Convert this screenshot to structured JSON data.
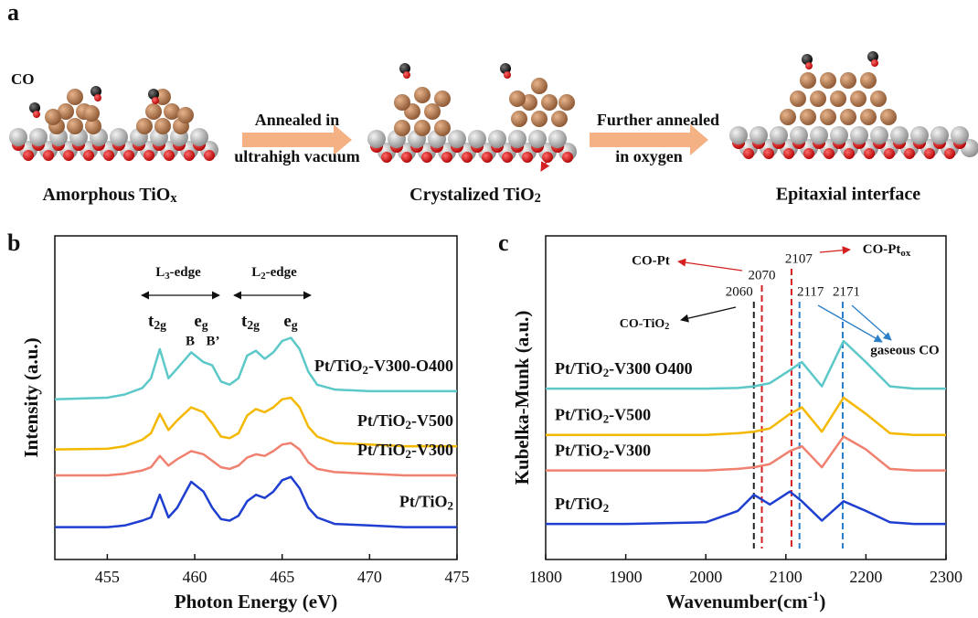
{
  "panel_a": {
    "label": "a",
    "co_label": "CO",
    "step1_top": "Annealed in",
    "step1_bottom": "ultrahigh vacuum",
    "step2_top": "Further annealed",
    "step2_bottom": "in oxygen",
    "stage1": [
      "Amorphous TiO",
      {
        "sub": "x"
      }
    ],
    "stage2": [
      "Crystalized TiO",
      {
        "sub": "2"
      }
    ],
    "stage3": "Epitaxial interface"
  },
  "chart_data": [
    {
      "type": "line",
      "panel": "b",
      "x_label": "Photon Energy (eV)",
      "y_label": "Intensity (a.u.)",
      "xlim": [
        452,
        475
      ],
      "xticks": [
        455,
        460,
        465,
        470,
        475
      ],
      "ylim": [
        0,
        10
      ],
      "x": [
        452,
        455,
        456,
        457,
        457.5,
        458,
        458.5,
        459,
        459.8,
        460.5,
        461,
        461.5,
        462,
        462.5,
        463,
        463.5,
        464,
        464.5,
        465,
        465.5,
        466,
        466.5,
        467,
        468,
        470,
        472,
        475
      ],
      "series": [
        {
          "name": [
            "Pt/TiO",
            {
              "sub": "2"
            },
            "-V300-O400"
          ],
          "color": "#5cc8c8",
          "values": [
            4.95,
            5.0,
            5.1,
            5.3,
            5.6,
            6.5,
            5.6,
            5.9,
            6.4,
            6.1,
            6.0,
            5.5,
            5.4,
            5.6,
            6.3,
            6.45,
            6.2,
            6.4,
            6.75,
            6.85,
            6.5,
            5.8,
            5.4,
            5.25,
            5.2,
            5.2,
            5.2
          ]
        },
        {
          "name": [
            "Pt/TiO",
            {
              "sub": "2"
            },
            "-V500"
          ],
          "color": "#f5b800",
          "values": [
            3.4,
            3.42,
            3.5,
            3.7,
            3.9,
            4.5,
            4.0,
            4.3,
            4.7,
            4.55,
            4.2,
            3.8,
            3.75,
            3.9,
            4.45,
            4.65,
            4.55,
            4.7,
            4.95,
            5.0,
            4.7,
            4.1,
            3.8,
            3.6,
            3.55,
            3.5,
            3.5
          ]
        },
        {
          "name": [
            "Pt/TiO",
            {
              "sub": "2"
            },
            "-V300"
          ],
          "color": "#f08070",
          "values": [
            2.6,
            2.6,
            2.65,
            2.75,
            2.85,
            3.2,
            2.9,
            3.1,
            3.35,
            3.25,
            3.05,
            2.85,
            2.8,
            2.9,
            3.15,
            3.25,
            3.2,
            3.35,
            3.55,
            3.6,
            3.4,
            3.0,
            2.8,
            2.7,
            2.65,
            2.6,
            2.6
          ]
        },
        {
          "name": [
            "Pt/TiO",
            {
              "sub": "2"
            }
          ],
          "color": "#1f3fd0",
          "values": [
            1.0,
            1.0,
            1.05,
            1.2,
            1.3,
            2.0,
            1.3,
            1.6,
            2.4,
            2.1,
            1.6,
            1.25,
            1.2,
            1.35,
            1.8,
            2.0,
            1.9,
            2.1,
            2.45,
            2.55,
            2.2,
            1.6,
            1.3,
            1.1,
            1.05,
            1.0,
            1.0
          ]
        }
      ],
      "annotations": {
        "l3": [
          "L",
          {
            "sub": "3"
          },
          "-edge"
        ],
        "l2": [
          "L",
          {
            "sub": "2"
          },
          "-edge"
        ],
        "t2g_1": [
          "t",
          {
            "sub": "2g"
          }
        ],
        "eg_1": [
          "e",
          {
            "sub": "g"
          }
        ],
        "t2g_2": [
          "t",
          {
            "sub": "2g"
          }
        ],
        "eg_2": [
          "e",
          {
            "sub": "g"
          }
        ],
        "b": "B",
        "b_prime": "B’"
      }
    },
    {
      "type": "line",
      "panel": "c",
      "x_label": [
        "Wavenumber(cm",
        {
          "sup": "-1"
        },
        ")"
      ],
      "y_label": "Kubelka-Munk (a.u.)",
      "xlim": [
        1800,
        2300
      ],
      "xticks": [
        1800,
        1900,
        2000,
        2100,
        2200,
        2300
      ],
      "ylim": [
        0,
        10
      ],
      "x": [
        1800,
        1900,
        2000,
        2040,
        2060,
        2080,
        2105,
        2120,
        2145,
        2172,
        2200,
        2230,
        2260,
        2300
      ],
      "series": [
        {
          "name": [
            "Pt/TiO",
            {
              "sub": "2"
            },
            "-V300 O400"
          ],
          "color": "#5cc8c8",
          "values": [
            5.28,
            5.28,
            5.28,
            5.3,
            5.35,
            5.45,
            5.85,
            6.1,
            5.35,
            6.75,
            6.1,
            5.35,
            5.28,
            5.28
          ]
        },
        {
          "name": [
            "Pt/TiO",
            {
              "sub": "2"
            },
            "-V500"
          ],
          "color": "#f5b800",
          "values": [
            3.85,
            3.85,
            3.85,
            3.9,
            3.95,
            4.05,
            4.5,
            4.7,
            3.95,
            5.0,
            4.5,
            3.9,
            3.85,
            3.85
          ]
        },
        {
          "name": [
            "Pt/TiO",
            {
              "sub": "2"
            },
            "-V300"
          ],
          "color": "#f08070",
          "values": [
            2.75,
            2.75,
            2.75,
            2.8,
            2.85,
            2.95,
            3.35,
            3.5,
            2.85,
            3.8,
            3.4,
            2.8,
            2.75,
            2.75
          ]
        },
        {
          "name": [
            "Pt/TiO",
            {
              "sub": "2"
            }
          ],
          "color": "#1f3fd0",
          "values": [
            1.1,
            1.1,
            1.15,
            1.5,
            2.0,
            1.7,
            2.1,
            1.8,
            1.2,
            1.8,
            1.5,
            1.15,
            1.1,
            1.1
          ]
        }
      ],
      "reference_lines": [
        {
          "value": 2060,
          "color": "#222222"
        },
        {
          "value": 2070,
          "color": "#d42020"
        },
        {
          "value": 2107,
          "color": "#d42020"
        },
        {
          "value": 2117,
          "color": "#2a7fc8"
        },
        {
          "value": 2171,
          "color": "#2a7fc8"
        }
      ],
      "annotations": {
        "co_pt": "CO-Pt",
        "co_ptox": [
          "CO-Pt",
          {
            "sub": "ox"
          }
        ],
        "co_tio2": [
          "CO-TiO",
          {
            "sub": "2"
          }
        ],
        "gaseous_co": "gaseous CO"
      }
    }
  ]
}
